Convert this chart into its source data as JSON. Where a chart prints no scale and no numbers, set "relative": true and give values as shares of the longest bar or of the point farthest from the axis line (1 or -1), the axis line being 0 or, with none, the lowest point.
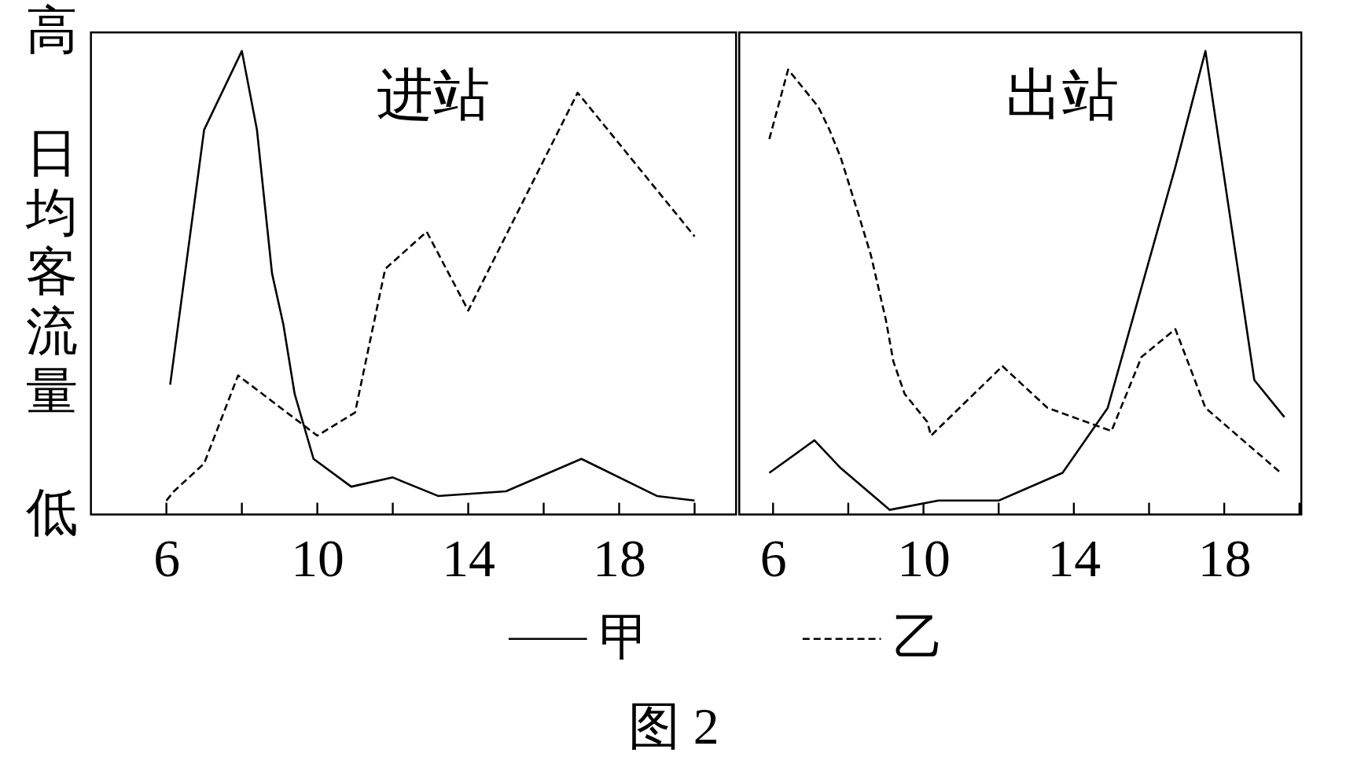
{
  "chart_data": [
    {
      "type": "line",
      "title": "进站",
      "ylabel": "日均客流量",
      "annotations": [
        "高",
        "低"
      ],
      "relative": true,
      "legend": "bottom",
      "xlim": [
        4,
        21.1
      ],
      "xticks": [
        6,
        {
          "value": 8,
          "label": null
        },
        10,
        {
          "value": 12,
          "label": null
        },
        14,
        {
          "value": 16,
          "label": null
        },
        18,
        {
          "value": 20,
          "label": null
        }
      ],
      "series": [
        {
          "name": "甲",
          "color": "#000000",
          "line_style": "solid",
          "x": [
            6.1,
            7,
            8,
            8.4,
            8.8,
            9.1,
            9.4,
            9.9,
            10.9,
            12,
            13.2,
            15,
            17,
            19,
            20
          ],
          "values": [
            0.28,
            0.83,
            1,
            0.83,
            0.52,
            0.41,
            0.26,
            0.12,
            0.06,
            0.08,
            0.04,
            0.05,
            0.12,
            0.04,
            0.03
          ]
        },
        {
          "name": "乙",
          "color": "#000000",
          "line_style": "dashed",
          "x": [
            6,
            6.2,
            7,
            7.9,
            10,
            11,
            11.8,
            12.9,
            14,
            16.9,
            20
          ],
          "values": [
            0.03,
            0.05,
            0.11,
            0.3,
            0.17,
            0.22,
            0.53,
            0.61,
            0.44,
            0.91,
            0.6
          ]
        }
      ]
    },
    {
      "type": "line",
      "title": "出站",
      "annotations": [
        "图 2"
      ],
      "relative": true,
      "legend": "bottom",
      "xlim": [
        5.1,
        20.05
      ],
      "xticks": [
        6,
        {
          "value": 8,
          "label": null
        },
        10,
        {
          "value": 12,
          "label": null
        },
        14,
        {
          "value": 16,
          "label": null
        },
        18,
        {
          "value": 20,
          "label": null
        }
      ],
      "series": [
        {
          "name": "甲",
          "color": "#000000",
          "line_style": "solid",
          "x": [
            5.9,
            7.1,
            7.8,
            9.1,
            10.4,
            12,
            13.7,
            14.9,
            16.7,
            17.5,
            18.8,
            19.6
          ],
          "values": [
            0.09,
            0.16,
            0.1,
            0.01,
            0.03,
            0.03,
            0.09,
            0.23,
            0.75,
            1,
            0.29,
            0.21
          ]
        },
        {
          "name": "乙",
          "color": "#000000",
          "line_style": "dashed",
          "x": [
            5.9,
            6.4,
            7.2,
            7.5,
            7.8,
            8.3,
            8.6,
            9,
            9.2,
            9.5,
            10.1,
            10.2,
            12.1,
            13.3,
            15,
            15.8,
            16.7,
            17.5,
            19.5
          ],
          "values": [
            0.81,
            0.96,
            0.88,
            0.83,
            0.77,
            0.64,
            0.56,
            0.42,
            0.33,
            0.26,
            0.2,
            0.17,
            0.32,
            0.23,
            0.18,
            0.34,
            0.4,
            0.23,
            0.09
          ]
        }
      ]
    }
  ]
}
